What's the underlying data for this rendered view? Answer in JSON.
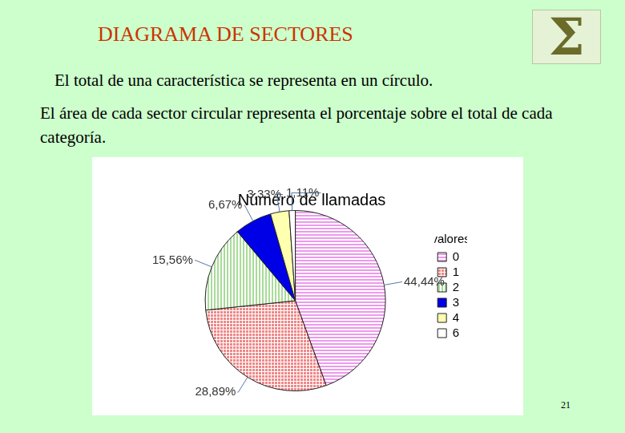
{
  "slide": {
    "title": "DIAGRAMA DE SECTORES",
    "logo": "Σ",
    "paragraphs": [
      "El total de una característica se representa en un círculo.",
      "El área de cada sector circular representa el porcentaje sobre el total de cada categoría."
    ],
    "page_number": 21
  },
  "chart_data": {
    "type": "pie",
    "title": "Número de llamadas",
    "legend_title": "valores",
    "categories": [
      "0",
      "1",
      "2",
      "3",
      "4",
      "6"
    ],
    "values": [
      44.44,
      28.89,
      15.56,
      6.67,
      3.33,
      1.11
    ],
    "value_labels": [
      "44,44%",
      "28,89%",
      "15,56%",
      "6,67%",
      "3,33%",
      "1,11%"
    ],
    "colors": [
      "#ee99ee",
      "#ee8888",
      "#a8dc98",
      "#0000e6",
      "#ffffb0",
      "#ffffff"
    ],
    "data_labels": true,
    "legend": "right"
  }
}
